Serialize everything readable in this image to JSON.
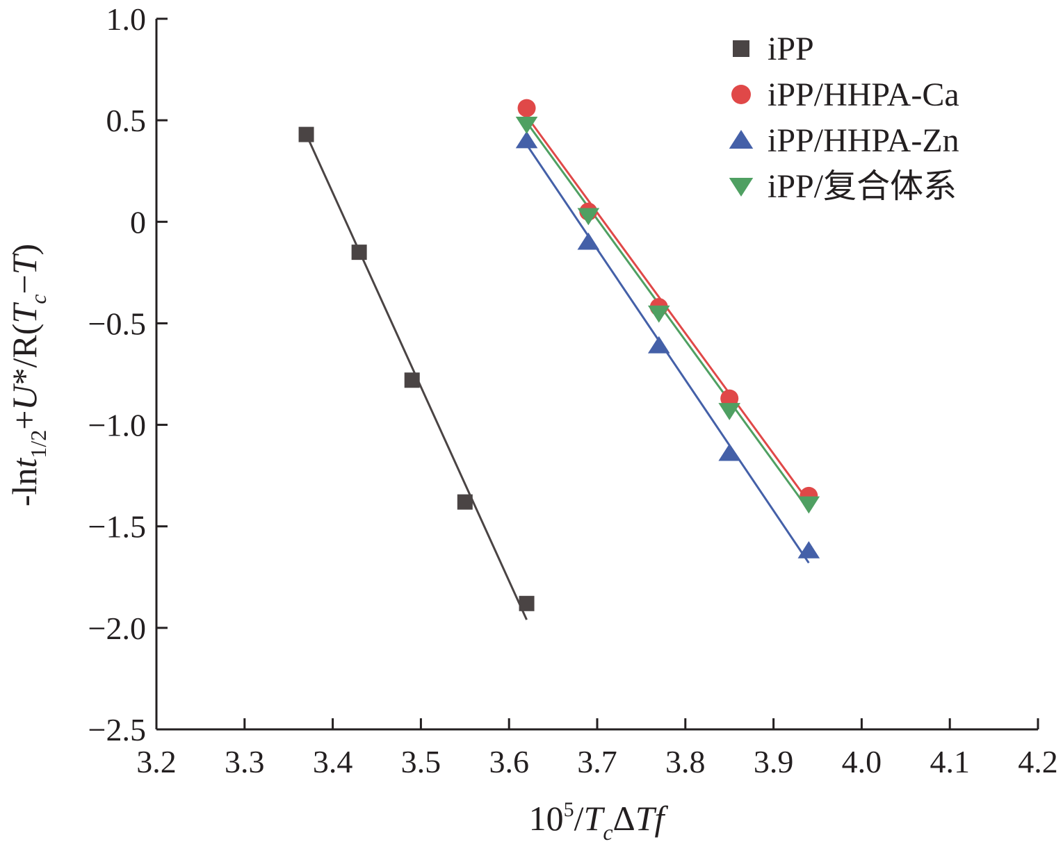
{
  "chart_data": {
    "type": "scatter",
    "title": "",
    "xlabel": "10⁵/TcΔTf",
    "ylabel": "-lnt1/2+U*/R(Tc-T)",
    "xlim": [
      3.2,
      4.2
    ],
    "ylim": [
      -2.5,
      1.0
    ],
    "x_ticks": [
      3.2,
      3.3,
      3.4,
      3.5,
      3.6,
      3.7,
      3.8,
      3.9,
      4.0,
      4.1,
      4.2
    ],
    "x_tick_labels": [
      "3.2",
      "3.3",
      "3.4",
      "3.5",
      "3.6",
      "3.7",
      "3.8",
      "3.9",
      "4.0",
      "4.1",
      "4.2"
    ],
    "y_ticks": [
      1.0,
      0.5,
      0,
      -0.5,
      -1.0,
      -1.5,
      -2.0,
      -2.5
    ],
    "y_tick_labels": [
      "1.0",
      "0.5",
      "0",
      "−0.5",
      "−1.0",
      "−1.5",
      "−2.0",
      "−2.5"
    ],
    "grid": false,
    "legend_position": "top-right",
    "series": [
      {
        "name": "iPP",
        "marker": "square",
        "color": "#4a4444",
        "x": [
          3.37,
          3.43,
          3.49,
          3.55,
          3.62
        ],
        "y": [
          0.43,
          -0.15,
          -0.78,
          -1.38,
          -1.88
        ],
        "fit": [
          [
            3.37,
            0.43
          ],
          [
            3.62,
            -1.96
          ]
        ]
      },
      {
        "name": "iPP/HHPA-Ca",
        "marker": "circle",
        "color": "#e04848",
        "x": [
          3.62,
          3.69,
          3.77,
          3.85,
          3.94
        ],
        "y": [
          0.56,
          0.05,
          -0.42,
          -0.87,
          -1.35
        ],
        "fit": [
          [
            3.62,
            0.52
          ],
          [
            3.94,
            -1.38
          ]
        ]
      },
      {
        "name": "iPP/HHPA-Zn",
        "marker": "triangle-up",
        "color": "#4460a8",
        "x": [
          3.62,
          3.69,
          3.77,
          3.85,
          3.94
        ],
        "y": [
          0.4,
          -0.1,
          -0.61,
          -1.14,
          -1.62
        ],
        "fit": [
          [
            3.62,
            0.38
          ],
          [
            3.94,
            -1.68
          ]
        ]
      },
      {
        "name": "iPP/复合体系",
        "marker": "triangle-down",
        "color": "#4fa062",
        "x": [
          3.62,
          3.69,
          3.77,
          3.85,
          3.94
        ],
        "y": [
          0.48,
          0.03,
          -0.45,
          -0.93,
          -1.39
        ],
        "fit": [
          [
            3.62,
            0.49
          ],
          [
            3.94,
            -1.42
          ]
        ]
      }
    ]
  }
}
